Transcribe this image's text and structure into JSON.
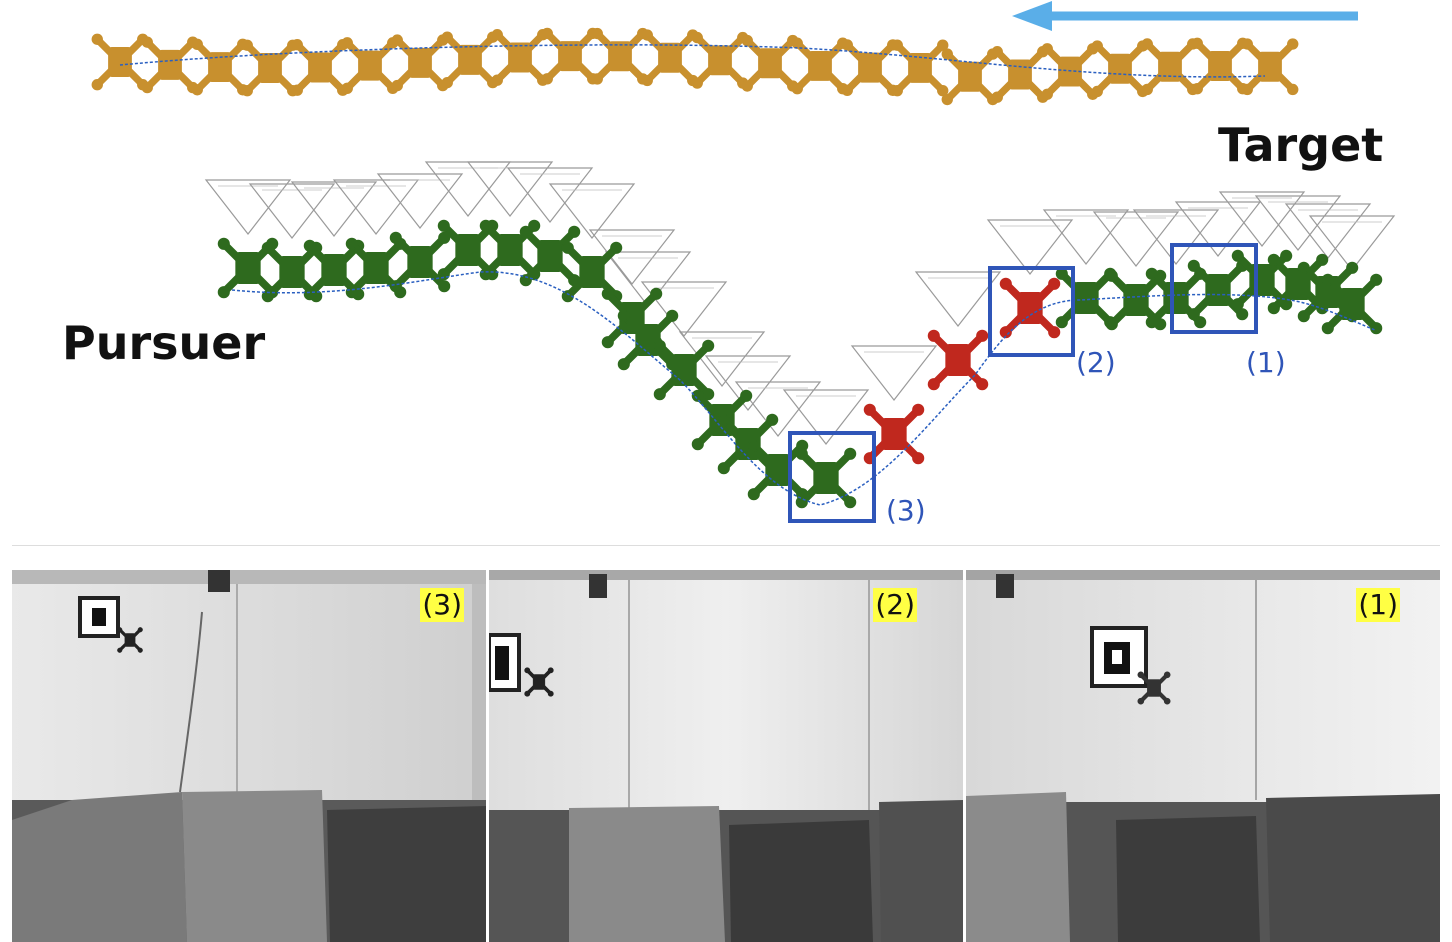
{
  "labels": {
    "target": "Target",
    "pursuer": "Pursuer"
  },
  "markers": [
    {
      "id": "3",
      "text": "(3)"
    },
    {
      "id": "2",
      "text": "(2)"
    },
    {
      "id": "1",
      "text": "(1)"
    }
  ],
  "photos": [
    {
      "tag": "(3)"
    },
    {
      "tag": "(2)"
    },
    {
      "tag": "(1)"
    }
  ],
  "colors": {
    "target_drone": "#c8902e",
    "pursuer_drone": "#2e6a1e",
    "highlight_drone": "#c0281e",
    "trajectory": "#2a5fc0",
    "marker_box": "#2f55b8",
    "arrow": "#5aaee8",
    "tag_bg": "#ffff44"
  },
  "icons": {
    "drone": "quadcopter-icon",
    "camera_frustum": "triangle-frustum-icon",
    "direction": "arrow-left-icon"
  }
}
